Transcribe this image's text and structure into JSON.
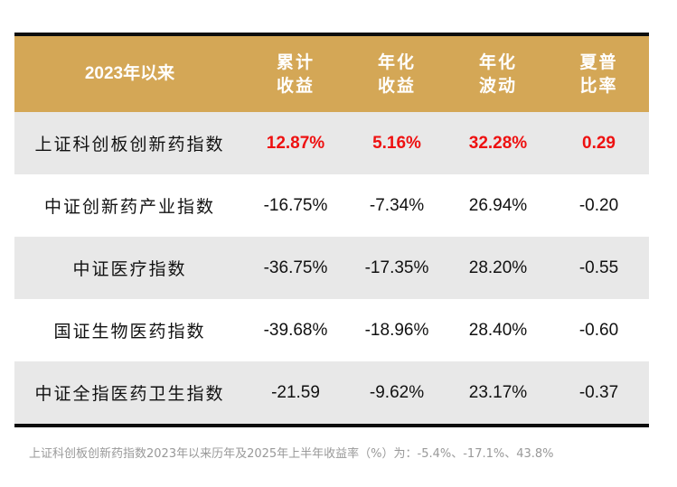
{
  "table": {
    "header": {
      "col0": "2023年以来",
      "col1": [
        "累计",
        "收益"
      ],
      "col2": [
        "年化",
        "收益"
      ],
      "col3": [
        "年化",
        "波动"
      ],
      "col4": [
        "夏普",
        "比率"
      ]
    },
    "rows": [
      {
        "name": "上证科创板创新药指数",
        "cum_return": "12.87%",
        "ann_return": "5.16%",
        "ann_vol": "32.28%",
        "sharpe": "0.29",
        "highlight": true
      },
      {
        "name": "中证创新药产业指数",
        "cum_return": "-16.75%",
        "ann_return": "-7.34%",
        "ann_vol": "26.94%",
        "sharpe": "-0.20",
        "highlight": false
      },
      {
        "name": "中证医疗指数",
        "cum_return": "-36.75%",
        "ann_return": "-17.35%",
        "ann_vol": "28.20%",
        "sharpe": "-0.55",
        "highlight": false
      },
      {
        "name": "国证生物医药指数",
        "cum_return": "-39.68%",
        "ann_return": "-18.96%",
        "ann_vol": "28.40%",
        "sharpe": "-0.60",
        "highlight": false
      },
      {
        "name": "中证全指医药卫生指数",
        "cum_return": "-21.59",
        "ann_return": "-9.62%",
        "ann_vol": "23.17%",
        "sharpe": "-0.37",
        "highlight": false
      }
    ]
  },
  "colors": {
    "header_bg": "#d4a756",
    "header_text": "#ffffff",
    "highlight_text": "#ee1111",
    "shaded_row_bg": "#e8e8e8",
    "rule": "#0d0d0d",
    "footnote_text": "#999999"
  },
  "footnote": "上证科创板创新药指数2023年以来历年及2025年上半年收益率（%）为：-5.4%、-17.1%、43.8%"
}
